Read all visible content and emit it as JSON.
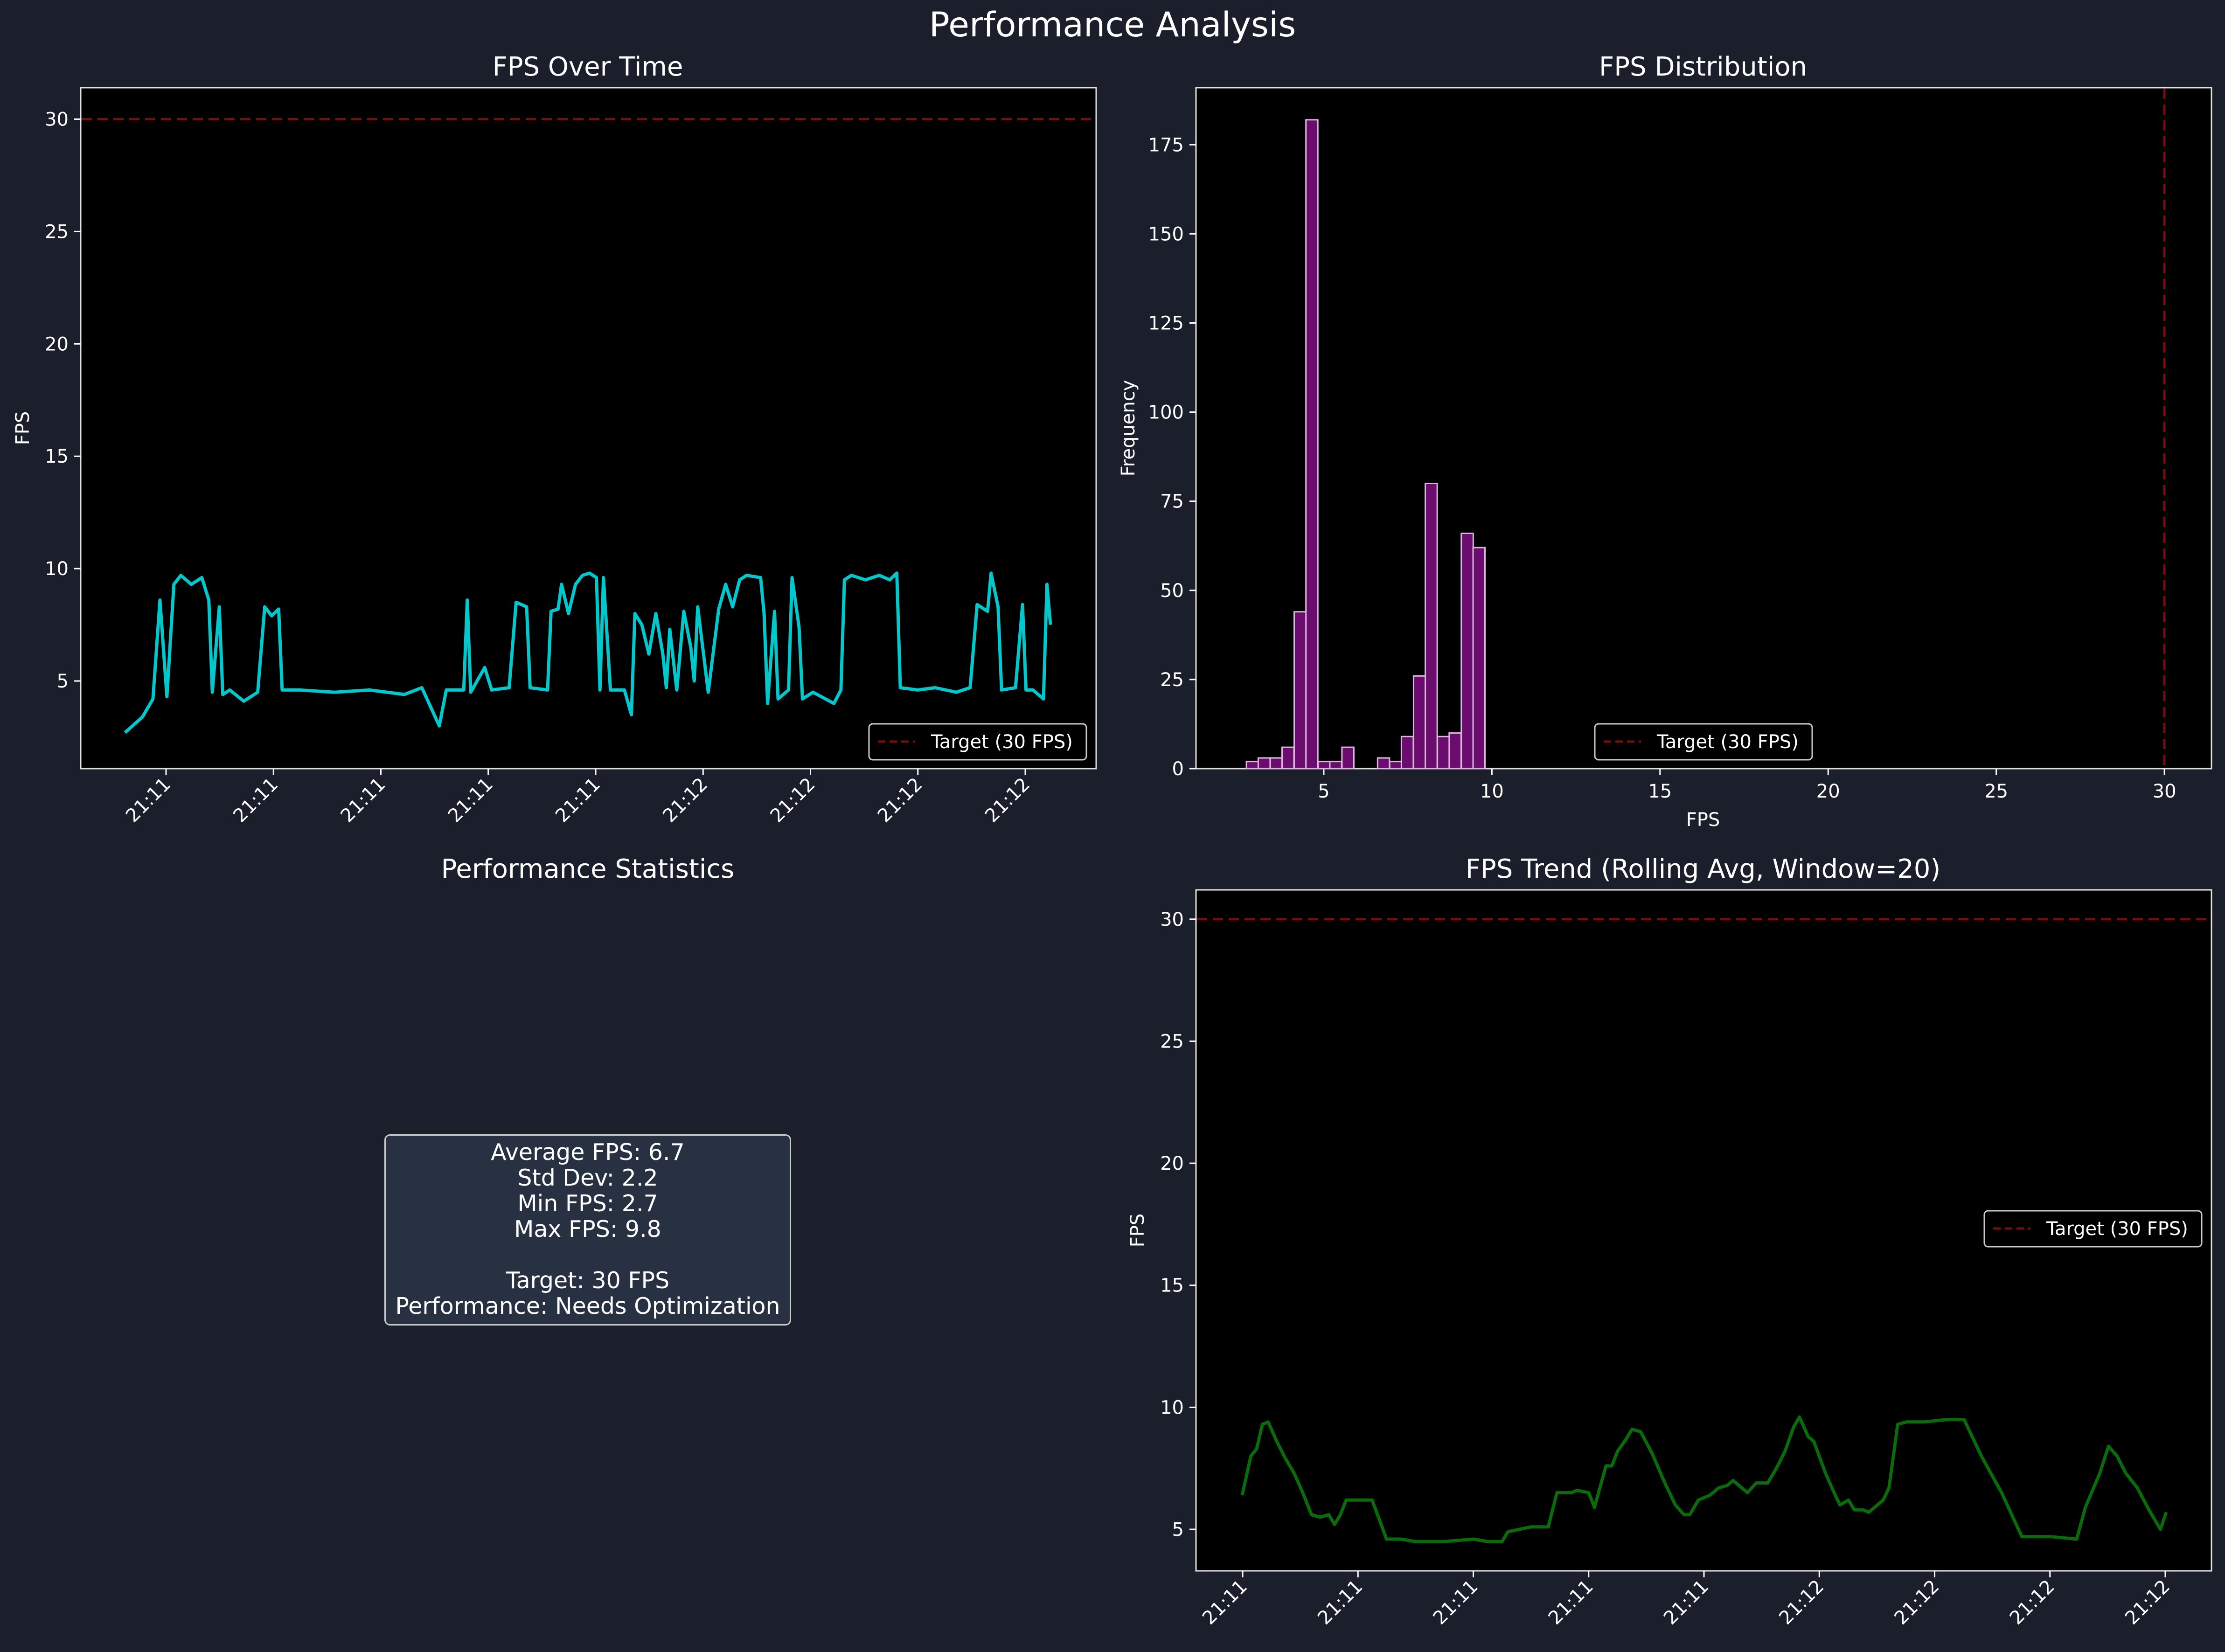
{
  "page_title": "Performance Analysis",
  "colors": {
    "figure_bg": "#1b1f2b",
    "axes_bg": "#000000",
    "fps_line": "#00c8cc",
    "hist_fill": "#6a0d6e",
    "hist_edge": "#d9b8da",
    "rolling_line": "#0a6b0a",
    "target_line": "#7a0d0d",
    "text": "#ffffff"
  },
  "chart_data": [
    {
      "id": "fps_over_time",
      "type": "line",
      "title": "FPS Over Time",
      "xlabel": "",
      "ylabel": "FPS",
      "x_tick_labels": [
        "21:11",
        "21:11",
        "21:11",
        "21:11",
        "21:11",
        "21:12",
        "21:12",
        "21:12",
        "21:12"
      ],
      "y_ticks": [
        5,
        10,
        15,
        20,
        25,
        30
      ],
      "ylim": [
        1.1,
        31.4
      ],
      "series": [
        {
          "name": "FPS",
          "segments": [
            [
              0,
              2.7
            ],
            [
              5,
              3.4
            ],
            [
              8,
              4.2
            ],
            [
              10,
              8.6
            ],
            [
              12,
              4.3
            ],
            [
              14,
              9.3
            ],
            [
              16,
              9.7
            ],
            [
              19,
              9.3
            ],
            [
              22,
              9.6
            ],
            [
              24,
              8.6
            ],
            [
              25,
              4.5
            ],
            [
              27,
              8.3
            ],
            [
              28,
              4.4
            ],
            [
              30,
              4.6
            ],
            [
              34,
              4.1
            ],
            [
              38,
              4.5
            ],
            [
              40,
              8.3
            ],
            [
              42,
              7.9
            ],
            [
              44,
              8.2
            ],
            [
              45,
              4.6
            ],
            [
              50,
              4.6
            ],
            [
              60,
              4.5
            ],
            [
              70,
              4.6
            ],
            [
              80,
              4.4
            ],
            [
              85,
              4.7
            ],
            [
              90,
              3.0
            ],
            [
              92,
              4.6
            ],
            [
              97,
              4.6
            ],
            [
              98,
              8.6
            ],
            [
              99,
              4.5
            ],
            [
              103,
              5.6
            ],
            [
              105,
              4.6
            ],
            [
              110,
              4.7
            ],
            [
              112,
              8.5
            ],
            [
              115,
              8.3
            ],
            [
              116,
              4.7
            ],
            [
              121,
              4.6
            ],
            [
              122,
              8.1
            ],
            [
              124,
              8.2
            ],
            [
              125,
              9.3
            ],
            [
              127,
              8.0
            ],
            [
              129,
              9.3
            ],
            [
              131,
              9.7
            ],
            [
              133,
              9.8
            ],
            [
              135,
              9.6
            ],
            [
              136,
              4.6
            ],
            [
              137,
              9.6
            ],
            [
              139,
              4.6
            ],
            [
              143,
              4.6
            ],
            [
              145,
              3.5
            ],
            [
              146,
              8.0
            ],
            [
              148,
              7.5
            ],
            [
              150,
              6.2
            ],
            [
              152,
              8.0
            ],
            [
              154,
              6.2
            ],
            [
              155,
              4.7
            ],
            [
              156,
              7.3
            ],
            [
              158,
              4.6
            ],
            [
              160,
              8.1
            ],
            [
              162,
              6.5
            ],
            [
              163,
              5.0
            ],
            [
              164,
              8.3
            ],
            [
              167,
              4.5
            ],
            [
              170,
              8.2
            ],
            [
              172,
              9.3
            ],
            [
              174,
              8.3
            ],
            [
              176,
              9.5
            ],
            [
              178,
              9.7
            ],
            [
              182,
              9.6
            ],
            [
              183,
              8.0
            ],
            [
              184,
              4.0
            ],
            [
              186,
              8.1
            ],
            [
              187,
              4.2
            ],
            [
              190,
              4.6
            ],
            [
              191,
              9.6
            ],
            [
              193,
              7.4
            ],
            [
              194,
              4.2
            ],
            [
              197,
              4.5
            ],
            [
              203,
              4.0
            ],
            [
              205,
              4.6
            ],
            [
              206,
              9.5
            ],
            [
              208,
              9.7
            ],
            [
              212,
              9.5
            ],
            [
              216,
              9.7
            ],
            [
              219,
              9.5
            ],
            [
              221,
              9.8
            ],
            [
              222,
              4.7
            ],
            [
              227,
              4.6
            ],
            [
              232,
              4.7
            ],
            [
              238,
              4.5
            ],
            [
              242,
              4.7
            ],
            [
              244,
              8.4
            ],
            [
              247,
              8.1
            ],
            [
              248,
              9.8
            ],
            [
              250,
              8.3
            ],
            [
              251,
              4.6
            ],
            [
              255,
              4.7
            ],
            [
              257,
              8.4
            ],
            [
              258,
              4.6
            ],
            [
              260,
              4.6
            ],
            [
              263,
              4.2
            ],
            [
              264,
              9.3
            ],
            [
              265,
              7.5
            ]
          ]
        }
      ],
      "reference_line": {
        "y": 30,
        "label": "Target (30 FPS)"
      },
      "legend": {
        "location": "lower-right",
        "entries": [
          "Target (30 FPS)"
        ]
      }
    },
    {
      "id": "fps_distribution",
      "type": "bar",
      "title": "FPS Distribution",
      "xlabel": "FPS",
      "ylabel": "Frequency",
      "x_ticks": [
        5,
        10,
        15,
        20,
        25,
        30
      ],
      "y_ticks": [
        0,
        25,
        50,
        75,
        100,
        125,
        150,
        175
      ],
      "xlim": [
        1.2,
        31.4
      ],
      "ylim": [
        0,
        191
      ],
      "bin_width": 0.354,
      "bins": [
        {
          "x0": 2.7,
          "count": 2
        },
        {
          "x0": 3.05,
          "count": 3
        },
        {
          "x0": 3.41,
          "count": 3
        },
        {
          "x0": 3.76,
          "count": 6
        },
        {
          "x0": 4.12,
          "count": 44
        },
        {
          "x0": 4.47,
          "count": 182
        },
        {
          "x0": 4.83,
          "count": 2
        },
        {
          "x0": 5.18,
          "count": 2
        },
        {
          "x0": 5.54,
          "count": 6
        },
        {
          "x0": 5.89,
          "count": 0
        },
        {
          "x0": 6.25,
          "count": 0
        },
        {
          "x0": 6.6,
          "count": 3
        },
        {
          "x0": 6.96,
          "count": 2
        },
        {
          "x0": 7.31,
          "count": 9
        },
        {
          "x0": 7.67,
          "count": 26
        },
        {
          "x0": 8.02,
          "count": 80
        },
        {
          "x0": 8.38,
          "count": 9
        },
        {
          "x0": 8.73,
          "count": 10
        },
        {
          "x0": 9.09,
          "count": 66
        },
        {
          "x0": 9.44,
          "count": 62
        }
      ],
      "reference_line": {
        "x": 30,
        "label": "Target (30 FPS)"
      },
      "legend": {
        "location": "lower-center",
        "entries": [
          "Target (30 FPS)"
        ]
      }
    },
    {
      "id": "fps_trend",
      "type": "line",
      "title": "FPS Trend (Rolling Avg, Window=20)",
      "xlabel": "",
      "ylabel": "FPS",
      "x_tick_labels": [
        "21:11",
        "21:11",
        "21:11",
        "21:11",
        "21:11",
        "21:12",
        "21:12",
        "21:12",
        "21:12"
      ],
      "y_ticks": [
        5,
        10,
        15,
        20,
        25,
        30
      ],
      "ylim": [
        3.3,
        31.2
      ],
      "series": [
        {
          "name": "Rolling Avg",
          "segments": [
            [
              0,
              6.4
            ],
            [
              3,
              8.0
            ],
            [
              5,
              8.3
            ],
            [
              7,
              9.3
            ],
            [
              9,
              9.4
            ],
            [
              12,
              8.6
            ],
            [
              15,
              7.9
            ],
            [
              18,
              7.3
            ],
            [
              21,
              6.5
            ],
            [
              24,
              5.6
            ],
            [
              27,
              5.5
            ],
            [
              30,
              5.6
            ],
            [
              32,
              5.2
            ],
            [
              34,
              5.6
            ],
            [
              36,
              6.2
            ],
            [
              40,
              6.2
            ],
            [
              43,
              6.2
            ],
            [
              45,
              6.2
            ],
            [
              50,
              4.6
            ],
            [
              55,
              4.6
            ],
            [
              60,
              4.5
            ],
            [
              70,
              4.5
            ],
            [
              80,
              4.6
            ],
            [
              85,
              4.5
            ],
            [
              90,
              4.5
            ],
            [
              92,
              4.9
            ],
            [
              100,
              5.1
            ],
            [
              106,
              5.1
            ],
            [
              109,
              6.5
            ],
            [
              114,
              6.5
            ],
            [
              116,
              6.6
            ],
            [
              120,
              6.5
            ],
            [
              122,
              5.9
            ],
            [
              126,
              7.6
            ],
            [
              128,
              7.6
            ],
            [
              130,
              8.2
            ],
            [
              133,
              8.7
            ],
            [
              135,
              9.1
            ],
            [
              138,
              9.0
            ],
            [
              142,
              8.1
            ],
            [
              146,
              7.0
            ],
            [
              150,
              6.0
            ],
            [
              153,
              5.6
            ],
            [
              155,
              5.6
            ],
            [
              158,
              6.2
            ],
            [
              162,
              6.4
            ],
            [
              165,
              6.7
            ],
            [
              168,
              6.8
            ],
            [
              170,
              7.0
            ],
            [
              172,
              6.8
            ],
            [
              175,
              6.5
            ],
            [
              178,
              6.9
            ],
            [
              182,
              6.9
            ],
            [
              185,
              7.5
            ],
            [
              188,
              8.2
            ],
            [
              191,
              9.2
            ],
            [
              193,
              9.6
            ],
            [
              196,
              8.8
            ],
            [
              198,
              8.6
            ],
            [
              202,
              7.3
            ],
            [
              205,
              6.5
            ],
            [
              207,
              6.0
            ],
            [
              210,
              6.2
            ],
            [
              212,
              5.8
            ],
            [
              215,
              5.8
            ],
            [
              217,
              5.7
            ],
            [
              220,
              6.0
            ],
            [
              222,
              6.2
            ],
            [
              224,
              6.7
            ],
            [
              227,
              9.3
            ],
            [
              230,
              9.4
            ],
            [
              236,
              9.4
            ],
            [
              244,
              9.5
            ],
            [
              250,
              9.5
            ],
            [
              256,
              8.0
            ],
            [
              263,
              6.5
            ],
            [
              270,
              4.7
            ],
            [
              280,
              4.7
            ],
            [
              289,
              4.6
            ],
            [
              292,
              5.9
            ],
            [
              297,
              7.3
            ],
            [
              300,
              8.4
            ],
            [
              303,
              8.0
            ],
            [
              306,
              7.3
            ],
            [
              310,
              6.7
            ],
            [
              314,
              5.8
            ],
            [
              318,
              5.0
            ],
            [
              320,
              5.7
            ]
          ]
        }
      ],
      "reference_line": {
        "y": 30,
        "label": "Target (30 FPS)"
      },
      "legend": {
        "location": "center-right",
        "entries": [
          "Target (30 FPS)"
        ]
      }
    }
  ],
  "stats_panel": {
    "title": "Performance Statistics",
    "average_fps": "Average FPS: 6.7",
    "std_dev": "Std Dev: 2.2",
    "min_fps": "Min FPS: 2.7",
    "max_fps": "Max FPS: 9.8",
    "target": "Target: 30 FPS",
    "performance": "Performance: Needs Optimization"
  }
}
